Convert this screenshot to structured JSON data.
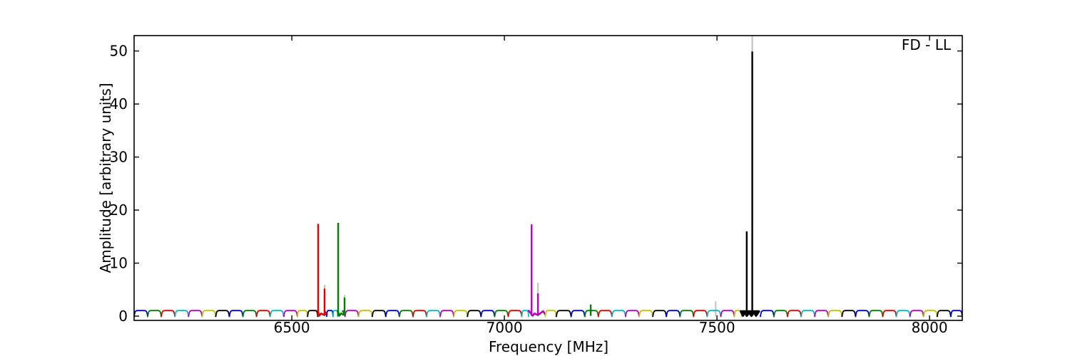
{
  "figure": {
    "corner_label": "FD - LL",
    "xlabel": "Frequency [MHz]",
    "ylabel": "Amplitude [arbitrary units]"
  },
  "chart_data": {
    "type": "line",
    "title": "FD - LL",
    "xlabel": "Frequency [MHz]",
    "ylabel": "Amplitude [arbitrary units]",
    "xlim": [
      6129,
      8077
    ],
    "ylim": [
      -0.8,
      52.9
    ],
    "xticks": [
      6500,
      7000,
      7500,
      8000
    ],
    "yticks": [
      0,
      10,
      20,
      30,
      40,
      50
    ],
    "grid": false,
    "legend_position": "none",
    "background": "#ffffff",
    "frame_color": "#000000",
    "colors": {
      "b": "#0000e6",
      "g": "#007f00",
      "r": "#e80000",
      "c": "#00bdbd",
      "m": "#bd00bd",
      "y": "#c2c200",
      "k": "#000000",
      "gray": "#c4c4c4"
    },
    "subband_width_mhz": 32,
    "baseline_level": 1.05,
    "subbands": [
      {
        "c": "b",
        "f0": 6129,
        "f1": 6161
      },
      {
        "c": "g",
        "f0": 6161,
        "f1": 6193
      },
      {
        "c": "r",
        "f0": 6193,
        "f1": 6225
      },
      {
        "c": "c",
        "f0": 6225,
        "f1": 6257
      },
      {
        "c": "m",
        "f0": 6257,
        "f1": 6289
      },
      {
        "c": "y",
        "f0": 6289,
        "f1": 6321
      },
      {
        "c": "k",
        "f0": 6321,
        "f1": 6353
      },
      {
        "c": "b",
        "f0": 6353,
        "f1": 6385
      },
      {
        "c": "g",
        "f0": 6385,
        "f1": 6417
      },
      {
        "c": "r",
        "f0": 6417,
        "f1": 6449
      },
      {
        "c": "c",
        "f0": 6449,
        "f1": 6481
      },
      {
        "c": "m",
        "f0": 6481,
        "f1": 6513
      },
      {
        "c": "y",
        "f0": 6513,
        "f1": 6537
      },
      {
        "c": "k",
        "f0": 6537,
        "f1": 6561
      },
      {
        "c": "r",
        "f0": 6561,
        "f1": 6582,
        "type": "vdip",
        "ft": 6562,
        "fs": 6577
      },
      {
        "c": "b",
        "f0": 6582,
        "f1": 6597
      },
      {
        "c": "c",
        "f0": 6597,
        "f1": 6608
      },
      {
        "c": "g",
        "f0": 6608,
        "f1": 6625,
        "type": "vdip",
        "ft": 6609,
        "fs": 6624
      },
      {
        "c": "m",
        "f0": 6625,
        "f1": 6657
      },
      {
        "c": "y",
        "f0": 6657,
        "f1": 6689
      },
      {
        "c": "k",
        "f0": 6689,
        "f1": 6721
      },
      {
        "c": "b",
        "f0": 6721,
        "f1": 6753
      },
      {
        "c": "g",
        "f0": 6753,
        "f1": 6785
      },
      {
        "c": "r",
        "f0": 6785,
        "f1": 6817
      },
      {
        "c": "c",
        "f0": 6817,
        "f1": 6849
      },
      {
        "c": "m",
        "f0": 6849,
        "f1": 6881
      },
      {
        "c": "y",
        "f0": 6881,
        "f1": 6913
      },
      {
        "c": "k",
        "f0": 6913,
        "f1": 6945
      },
      {
        "c": "b",
        "f0": 6945,
        "f1": 6977
      },
      {
        "c": "g",
        "f0": 6977,
        "f1": 7009
      },
      {
        "c": "r",
        "f0": 7009,
        "f1": 7041
      },
      {
        "c": "c",
        "f0": 7041,
        "f1": 7057
      },
      {
        "c": "m",
        "f0": 7057,
        "f1": 7096,
        "type": "vdip",
        "ft": 7064,
        "fs": 7079
      },
      {
        "c": "y",
        "f0": 7096,
        "f1": 7122
      },
      {
        "c": "k",
        "f0": 7122,
        "f1": 7157
      },
      {
        "c": "b",
        "f0": 7157,
        "f1": 7189
      },
      {
        "c": "g",
        "f0": 7189,
        "f1": 7221
      },
      {
        "c": "r",
        "f0": 7221,
        "f1": 7253
      },
      {
        "c": "c",
        "f0": 7253,
        "f1": 7285
      },
      {
        "c": "m",
        "f0": 7285,
        "f1": 7317
      },
      {
        "c": "y",
        "f0": 7317,
        "f1": 7349
      },
      {
        "c": "k",
        "f0": 7349,
        "f1": 7381
      },
      {
        "c": "b",
        "f0": 7381,
        "f1": 7413
      },
      {
        "c": "g",
        "f0": 7413,
        "f1": 7445
      },
      {
        "c": "r",
        "f0": 7445,
        "f1": 7477
      },
      {
        "c": "c",
        "f0": 7477,
        "f1": 7509
      },
      {
        "c": "m",
        "f0": 7509,
        "f1": 7541
      },
      {
        "c": "y",
        "f0": 7541,
        "f1": 7558
      },
      {
        "c": "k",
        "f0": 7558,
        "f1": 7602,
        "type": "gap"
      },
      {
        "c": "b",
        "f0": 7602,
        "f1": 7634
      },
      {
        "c": "g",
        "f0": 7634,
        "f1": 7666
      },
      {
        "c": "r",
        "f0": 7666,
        "f1": 7698
      },
      {
        "c": "c",
        "f0": 7698,
        "f1": 7730
      },
      {
        "c": "m",
        "f0": 7730,
        "f1": 7762
      },
      {
        "c": "y",
        "f0": 7762,
        "f1": 7794
      },
      {
        "c": "k",
        "f0": 7794,
        "f1": 7826
      },
      {
        "c": "b",
        "f0": 7826,
        "f1": 7858
      },
      {
        "c": "g",
        "f0": 7858,
        "f1": 7890
      },
      {
        "c": "r",
        "f0": 7890,
        "f1": 7922
      },
      {
        "c": "c",
        "f0": 7922,
        "f1": 7954
      },
      {
        "c": "m",
        "f0": 7954,
        "f1": 7986
      },
      {
        "c": "y",
        "f0": 7986,
        "f1": 8018
      },
      {
        "c": "k",
        "f0": 8018,
        "f1": 8050
      },
      {
        "c": "b",
        "f0": 8050,
        "f1": 8077
      }
    ],
    "spikes": [
      {
        "c": "r",
        "f": 6562,
        "amp": 17.4
      },
      {
        "c": "r",
        "f": 6577,
        "amp": 5.2,
        "gray_amp": 5.9
      },
      {
        "c": "g",
        "f": 6609,
        "amp": 17.6
      },
      {
        "c": "g",
        "f": 6624,
        "amp": 3.5,
        "gray_amp": 4.0
      },
      {
        "c": "m",
        "f": 7064,
        "amp": 17.3
      },
      {
        "c": "m",
        "f": 7079,
        "amp": 4.3,
        "gray_amp": 6.3
      },
      {
        "c": "g",
        "f": 7203,
        "amp": 2.2
      },
      {
        "c": "gray",
        "f": 7497,
        "amp": 2.8
      },
      {
        "c": "k",
        "f": 7570,
        "amp": 16.0
      },
      {
        "c": "k",
        "f": 7583,
        "amp": 49.9,
        "gray_amp": 52.9
      }
    ],
    "blob": {
      "c": "k",
      "points": [
        [
          7556,
          0.9
        ],
        [
          7561,
          0.08
        ],
        [
          7566,
          0.7
        ],
        [
          7570,
          0.06
        ],
        [
          7576,
          0.65
        ],
        [
          7581,
          0.06
        ],
        [
          7587,
          0.7
        ],
        [
          7592,
          0.08
        ],
        [
          7599,
          0.9
        ]
      ]
    }
  }
}
